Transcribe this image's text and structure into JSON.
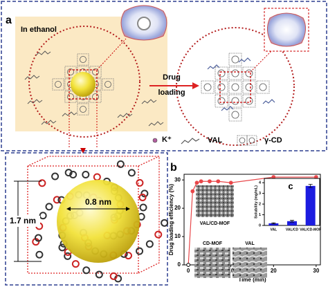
{
  "panel_labels": [
    "a",
    "b"
  ],
  "left_label": "In ethanol",
  "arrow_label": [
    "Drug",
    "loading"
  ],
  "legend": [
    "K⁺",
    "VAL",
    "γ-CD"
  ],
  "dimensions": [
    "1.7 nm",
    "0.8 nm"
  ],
  "images": [
    "VAL/CD-MOF",
    "CD-MOF",
    "VAL"
  ],
  "chart_data": [
    {
      "type": "line",
      "x_label": "Time (min)",
      "y_label": "Drug loading efficiency (%)",
      "x": [
        0,
        1,
        2,
        3,
        5,
        7,
        10,
        20,
        30
      ],
      "values": [
        0,
        26,
        29,
        29.5,
        29.5,
        29.5,
        29,
        31,
        31
      ],
      "color": "#e8474a",
      "xlim": [
        -1,
        31
      ],
      "ylim": [
        0,
        32
      ],
      "xticks": [
        0,
        10,
        20,
        30
      ],
      "yticks": [
        0,
        10,
        20,
        30
      ]
    },
    {
      "type": "bar",
      "title": "c",
      "y_label": "Solubility (mg/mL)",
      "categories": [
        "VAL",
        "VAL/CD",
        "VAL/CD-MOF"
      ],
      "values": [
        0.2,
        0.4,
        3.7
      ],
      "errors": [
        0.05,
        0.08,
        0.15
      ],
      "color": "#1c1ce0",
      "ylim": [
        0,
        4.4
      ],
      "yticks": [
        0,
        1,
        2,
        3,
        4
      ]
    }
  ]
}
